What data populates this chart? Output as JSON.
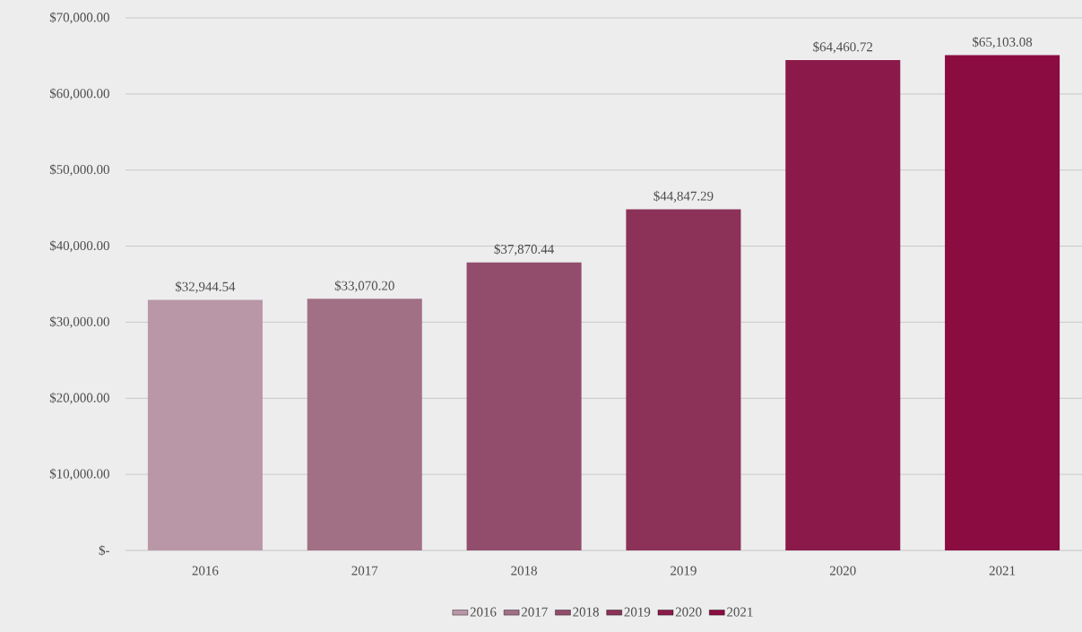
{
  "chart_data": {
    "type": "bar",
    "categories": [
      "2016",
      "2017",
      "2018",
      "2019",
      "2020",
      "2021"
    ],
    "series": [
      {
        "name": "2016",
        "color": "#b997a7",
        "values": [
          32944.54,
          null,
          null,
          null,
          null,
          null
        ],
        "value_labels": [
          "$32,944.54",
          null,
          null,
          null,
          null,
          null
        ]
      },
      {
        "name": "2017",
        "color": "#a27084",
        "values": [
          null,
          33070.2,
          null,
          null,
          null,
          null
        ],
        "value_labels": [
          null,
          "$33,070.20",
          null,
          null,
          null,
          null
        ]
      },
      {
        "name": "2018",
        "color": "#934d6c",
        "values": [
          null,
          null,
          37870.44,
          null,
          null,
          null
        ],
        "value_labels": [
          null,
          null,
          "$37,870.44",
          null,
          null,
          null
        ]
      },
      {
        "name": "2019",
        "color": "#8c3158",
        "values": [
          null,
          null,
          null,
          44847.29,
          null,
          null
        ],
        "value_labels": [
          null,
          null,
          null,
          "$44,847.29",
          null,
          null
        ]
      },
      {
        "name": "2020",
        "color": "#8b1a4a",
        "values": [
          null,
          null,
          null,
          null,
          64460.72,
          null
        ],
        "value_labels": [
          null,
          null,
          null,
          null,
          "$64,460.72",
          null
        ]
      },
      {
        "name": "2021",
        "color": "#8a0c41",
        "values": [
          null,
          null,
          null,
          null,
          null,
          65103.08
        ],
        "value_labels": [
          null,
          null,
          null,
          null,
          null,
          "$65,103.08"
        ]
      }
    ],
    "ylim": [
      0,
      70000
    ],
    "yticks": [
      {
        "value": 0,
        "label": "$-"
      },
      {
        "value": 10000,
        "label": "$10,000.00"
      },
      {
        "value": 20000,
        "label": "$20,000.00"
      },
      {
        "value": 30000,
        "label": "$30,000.00"
      },
      {
        "value": 40000,
        "label": "$40,000.00"
      },
      {
        "value": 50000,
        "label": "$50,000.00"
      },
      {
        "value": 60000,
        "label": "$60,000.00"
      },
      {
        "value": 70000,
        "label": "$70,000.00"
      }
    ],
    "grid": "y",
    "legend": "bottom"
  }
}
